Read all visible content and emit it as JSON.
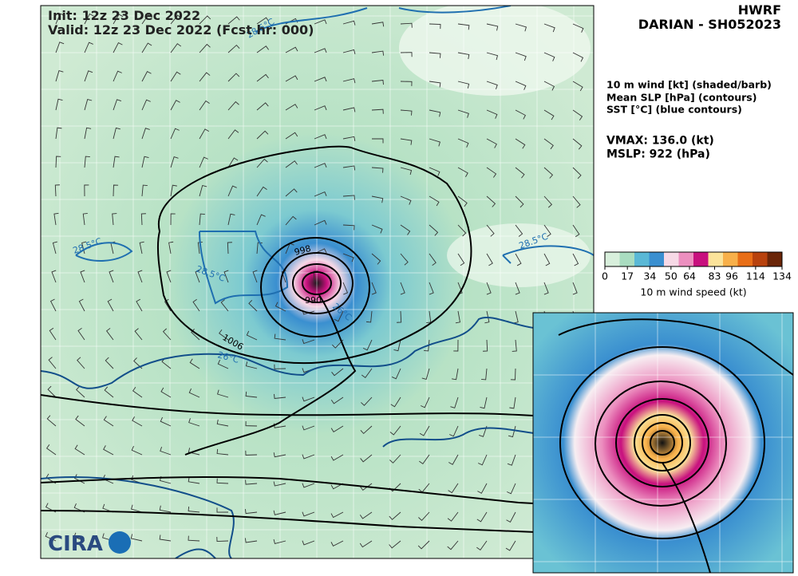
{
  "header": {
    "init": "Init:   12z 23 Dec 2022",
    "valid": "Valid: 12z 23 Dec 2022 (Fcst hr: 000)",
    "model": "HWRF",
    "storm": "DARIAN - SH052023"
  },
  "fields": [
    "10 m wind [kt] (shaded/barb)",
    "Mean SLP [hPa] (contours)",
    "SST [°C] (blue contours)"
  ],
  "stats": {
    "vmax": "VMAX: 136.0 (kt)",
    "mslp": "MSLP:  922 (hPa)"
  },
  "colorbar": {
    "label": "10 m wind speed (kt)",
    "lim": [
      0,
      134
    ],
    "ticks": [
      0,
      17,
      34,
      50,
      64,
      83,
      96,
      114,
      134
    ],
    "colors": [
      "#d8efdc",
      "#a9dcc0",
      "#5ab8d6",
      "#3a8fd0",
      "#f7d9e6",
      "#ec8fbf",
      "#c8107e",
      "#fbe39a",
      "#f8b04a",
      "#e86e17",
      "#b8420d",
      "#6a2508"
    ]
  },
  "contour_labels": [
    "28.5°C",
    "28.5°C",
    "28.5°C",
    "28.5°C",
    "26°C",
    "26°C",
    "1006",
    "998",
    "990",
    "990",
    "998"
  ],
  "logo": "CIRA"
}
